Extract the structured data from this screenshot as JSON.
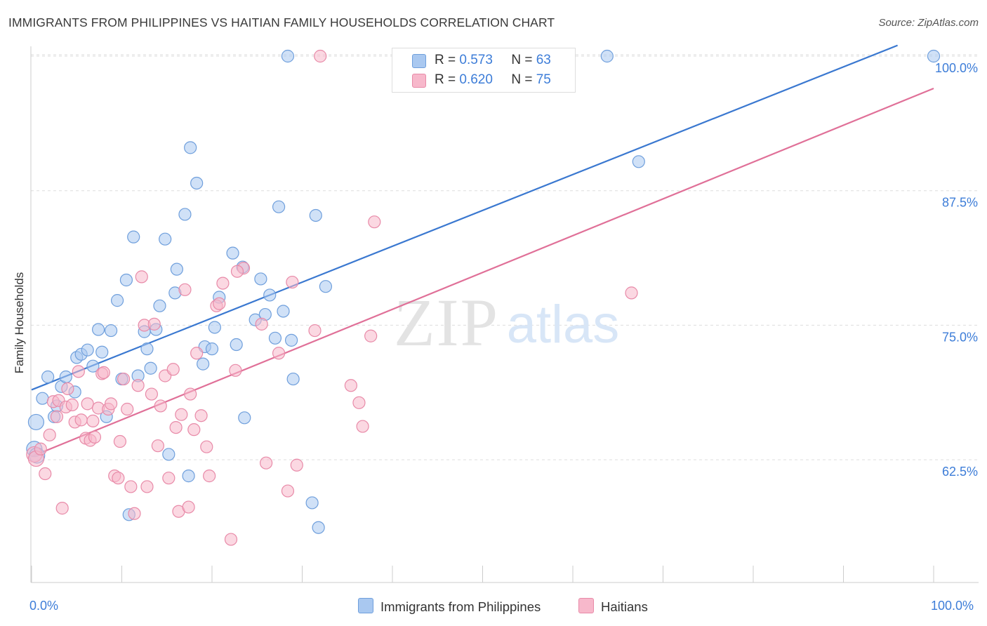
{
  "title": "IMMIGRANTS FROM PHILIPPINES VS HAITIAN FAMILY HOUSEHOLDS CORRELATION CHART",
  "source": "Source: ZipAtlas.com",
  "watermark": {
    "zip": "ZIP",
    "atlas": "atlas"
  },
  "legend": {
    "r_label": "R =",
    "n_label": "N =",
    "philippines": {
      "r": "0.573",
      "n": "63"
    },
    "haitians": {
      "r": "0.620",
      "n": "75"
    }
  },
  "colors": {
    "blue_fill": "#a9c8f0",
    "blue_stroke": "#6f9fdc",
    "blue_line": "#3a78d0",
    "pink_fill": "#f7b8cb",
    "pink_stroke": "#e88aa8",
    "pink_line": "#e07098",
    "tick_text": "#3d7dd8",
    "grid": "#dddddd"
  },
  "chart_data": {
    "type": "scatter",
    "title": "IMMIGRANTS FROM PHILIPPINES VS HAITIAN FAMILY HOUSEHOLDS CORRELATION CHART",
    "xlabel": "",
    "ylabel": "Family Households",
    "xlim": [
      0,
      100
    ],
    "ylim": [
      52,
      103
    ],
    "x_tick_labels": [
      "0.0%",
      "100.0%"
    ],
    "y_ticks": [
      62.5,
      75.0,
      87.5,
      100.0
    ],
    "y_tick_labels": [
      "62.5%",
      "75.0%",
      "87.5%",
      "100.0%"
    ],
    "grid": true,
    "legend_position": "top-center",
    "series": [
      {
        "name": "Immigrants from Philippines",
        "color": "blue",
        "trend": {
          "x": [
            0,
            96
          ],
          "y": [
            69.0,
            101.0
          ]
        },
        "points": [
          [
            0.5,
            66.0
          ],
          [
            0.3,
            63.5
          ],
          [
            1.2,
            68.2
          ],
          [
            1.8,
            70.2
          ],
          [
            2.5,
            66.5
          ],
          [
            2.8,
            67.5
          ],
          [
            3.3,
            69.3
          ],
          [
            3.8,
            70.2
          ],
          [
            4.8,
            68.8
          ],
          [
            5.0,
            72.0
          ],
          [
            5.5,
            72.3
          ],
          [
            6.2,
            72.7
          ],
          [
            6.8,
            71.2
          ],
          [
            7.4,
            74.6
          ],
          [
            7.8,
            72.5
          ],
          [
            8.3,
            66.5
          ],
          [
            8.8,
            74.5
          ],
          [
            9.5,
            77.3
          ],
          [
            10.0,
            70.0
          ],
          [
            10.5,
            79.2
          ],
          [
            11.3,
            83.2
          ],
          [
            11.8,
            70.3
          ],
          [
            12.5,
            74.4
          ],
          [
            12.8,
            72.8
          ],
          [
            13.2,
            71.0
          ],
          [
            13.8,
            74.6
          ],
          [
            14.2,
            76.8
          ],
          [
            14.8,
            83.0
          ],
          [
            15.2,
            63.0
          ],
          [
            15.9,
            78.0
          ],
          [
            16.1,
            80.2
          ],
          [
            17.0,
            85.3
          ],
          [
            17.4,
            61.0
          ],
          [
            17.6,
            91.5
          ],
          [
            18.3,
            88.2
          ],
          [
            19.0,
            71.4
          ],
          [
            19.2,
            73.0
          ],
          [
            20.0,
            72.8
          ],
          [
            20.3,
            74.8
          ],
          [
            20.8,
            77.6
          ],
          [
            22.3,
            81.7
          ],
          [
            22.7,
            73.2
          ],
          [
            23.4,
            80.4
          ],
          [
            23.6,
            66.4
          ],
          [
            24.8,
            75.5
          ],
          [
            25.4,
            79.3
          ],
          [
            25.9,
            76.0
          ],
          [
            26.4,
            77.8
          ],
          [
            27.0,
            73.8
          ],
          [
            27.4,
            86.0
          ],
          [
            27.9,
            76.3
          ],
          [
            28.4,
            100.0
          ],
          [
            28.8,
            73.6
          ],
          [
            29.0,
            70.0
          ],
          [
            31.1,
            58.5
          ],
          [
            31.5,
            85.2
          ],
          [
            31.8,
            56.2
          ],
          [
            32.6,
            78.6
          ],
          [
            10.8,
            57.4
          ],
          [
            63.8,
            100.0
          ],
          [
            67.3,
            90.2
          ],
          [
            100.0,
            100.0
          ],
          [
            0.6,
            62.9
          ]
        ]
      },
      {
        "name": "Haitians",
        "color": "pink",
        "trend": {
          "x": [
            0,
            100
          ],
          "y": [
            62.8,
            97.0
          ]
        },
        "points": [
          [
            0.3,
            63.0
          ],
          [
            0.5,
            62.6
          ],
          [
            1.0,
            63.5
          ],
          [
            1.5,
            61.2
          ],
          [
            2.0,
            64.8
          ],
          [
            2.4,
            67.9
          ],
          [
            2.8,
            66.5
          ],
          [
            3.0,
            68.0
          ],
          [
            3.4,
            58.0
          ],
          [
            3.8,
            67.4
          ],
          [
            4.0,
            69.1
          ],
          [
            4.5,
            67.6
          ],
          [
            4.8,
            66.0
          ],
          [
            5.2,
            70.7
          ],
          [
            5.5,
            66.2
          ],
          [
            6.0,
            64.5
          ],
          [
            6.2,
            67.7
          ],
          [
            6.5,
            64.3
          ],
          [
            6.8,
            66.1
          ],
          [
            7.0,
            64.6
          ],
          [
            7.4,
            67.3
          ],
          [
            7.8,
            70.5
          ],
          [
            8.0,
            70.6
          ],
          [
            8.5,
            67.2
          ],
          [
            8.8,
            67.7
          ],
          [
            9.2,
            61.0
          ],
          [
            9.6,
            60.8
          ],
          [
            9.8,
            64.2
          ],
          [
            10.2,
            70.0
          ],
          [
            10.6,
            67.2
          ],
          [
            11.0,
            60.0
          ],
          [
            11.4,
            57.5
          ],
          [
            11.8,
            69.4
          ],
          [
            12.2,
            79.5
          ],
          [
            12.5,
            75.0
          ],
          [
            12.8,
            60.0
          ],
          [
            13.3,
            68.6
          ],
          [
            13.6,
            75.1
          ],
          [
            14.0,
            63.8
          ],
          [
            14.3,
            67.5
          ],
          [
            14.8,
            70.3
          ],
          [
            15.2,
            60.8
          ],
          [
            15.7,
            70.9
          ],
          [
            16.0,
            65.5
          ],
          [
            16.3,
            57.7
          ],
          [
            16.6,
            66.7
          ],
          [
            17.0,
            78.3
          ],
          [
            17.4,
            58.1
          ],
          [
            17.6,
            68.6
          ],
          [
            18.0,
            65.3
          ],
          [
            18.3,
            72.4
          ],
          [
            18.8,
            66.6
          ],
          [
            19.4,
            63.7
          ],
          [
            19.7,
            61.0
          ],
          [
            20.5,
            76.8
          ],
          [
            20.8,
            77.0
          ],
          [
            21.2,
            78.9
          ],
          [
            22.1,
            55.1
          ],
          [
            22.6,
            70.8
          ],
          [
            23.5,
            80.3
          ],
          [
            25.5,
            75.1
          ],
          [
            26.0,
            62.2
          ],
          [
            27.4,
            72.4
          ],
          [
            28.4,
            59.6
          ],
          [
            28.9,
            79.0
          ],
          [
            29.4,
            62.0
          ],
          [
            31.4,
            74.5
          ],
          [
            32.0,
            100.0
          ],
          [
            35.4,
            69.4
          ],
          [
            36.3,
            67.8
          ],
          [
            36.7,
            65.6
          ],
          [
            37.6,
            74.0
          ],
          [
            38.0,
            84.6
          ],
          [
            66.5,
            78.0
          ],
          [
            22.8,
            80.0
          ]
        ]
      }
    ]
  }
}
